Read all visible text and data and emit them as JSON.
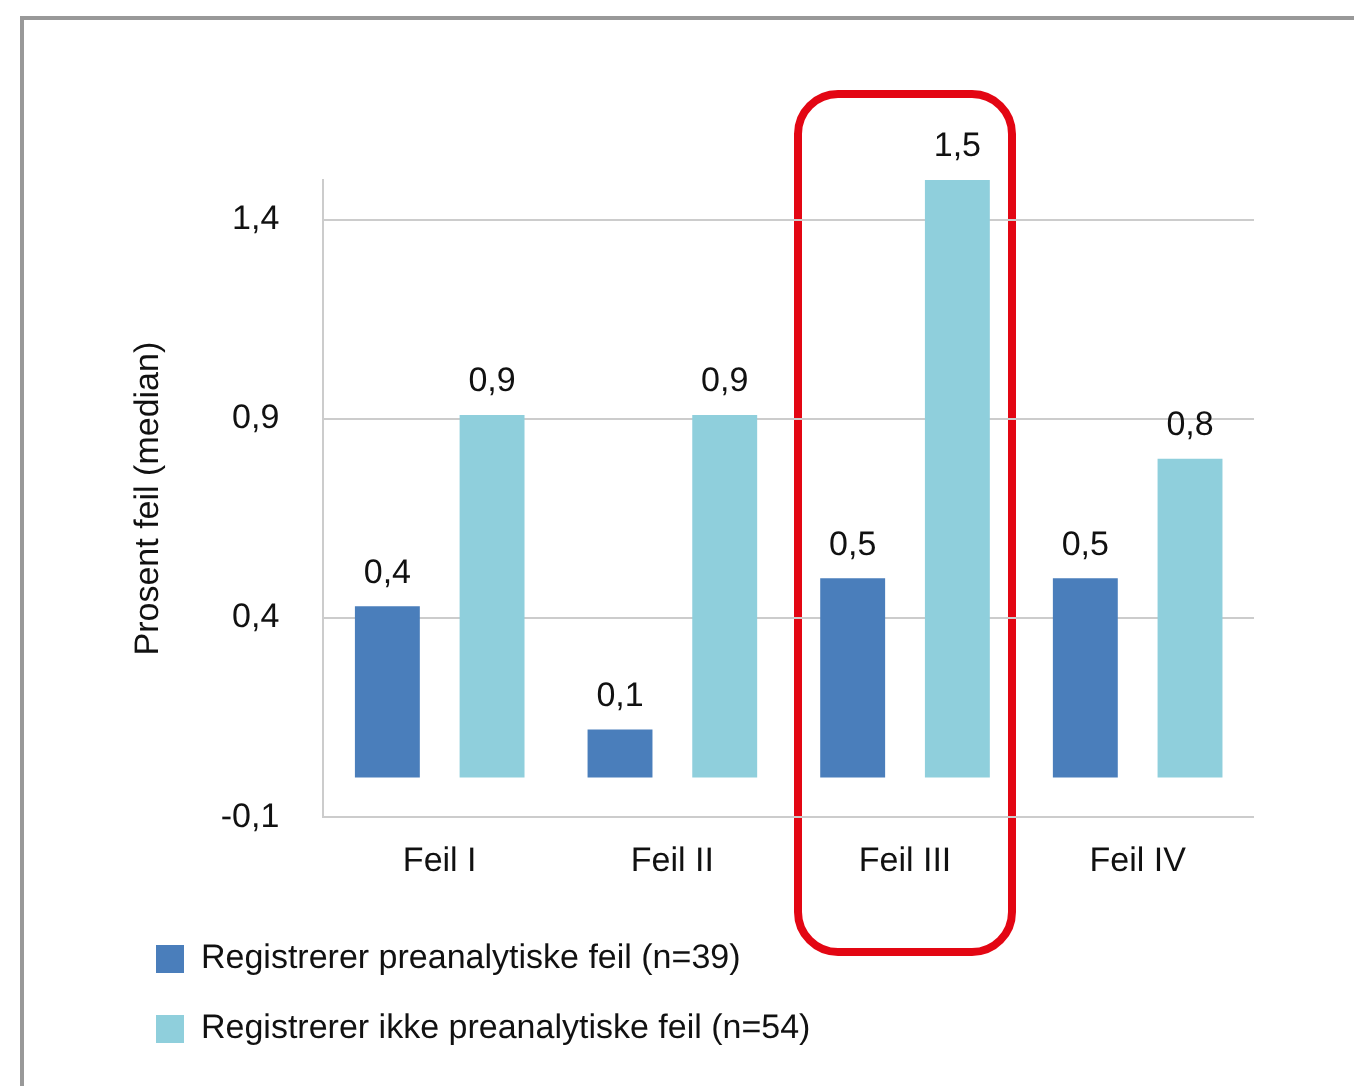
{
  "chart_data": {
    "type": "bar",
    "ylabel": "Prosent feil (median)",
    "categories": [
      "Feil I",
      "Feil II",
      "Feil III",
      "Feil IV"
    ],
    "series": [
      {
        "name": "Registrerer preanalytiske feil (n=39)",
        "color": "#4a7ebb",
        "values": [
          0.43,
          0.12,
          0.5,
          0.5
        ],
        "value_labels": [
          "0,4",
          "0,1",
          "0,5",
          "0,5"
        ]
      },
      {
        "name": "Registrerer ikke preanalytiske feil (n=54)",
        "color": "#8fcfdc",
        "values": [
          0.91,
          0.91,
          1.5,
          0.8
        ],
        "value_labels": [
          "0,9",
          "0,9",
          "1,5",
          "0,8"
        ]
      }
    ],
    "ylim": [
      -0.1,
      1.5
    ],
    "yticks": [
      {
        "value": -0.1,
        "label": "-0,1"
      },
      {
        "value": 0.4,
        "label": "0,4"
      },
      {
        "value": 0.9,
        "label": "0,9"
      },
      {
        "value": 1.4,
        "label": "1,4"
      }
    ],
    "grid": "y",
    "legend": "bottom"
  }
}
